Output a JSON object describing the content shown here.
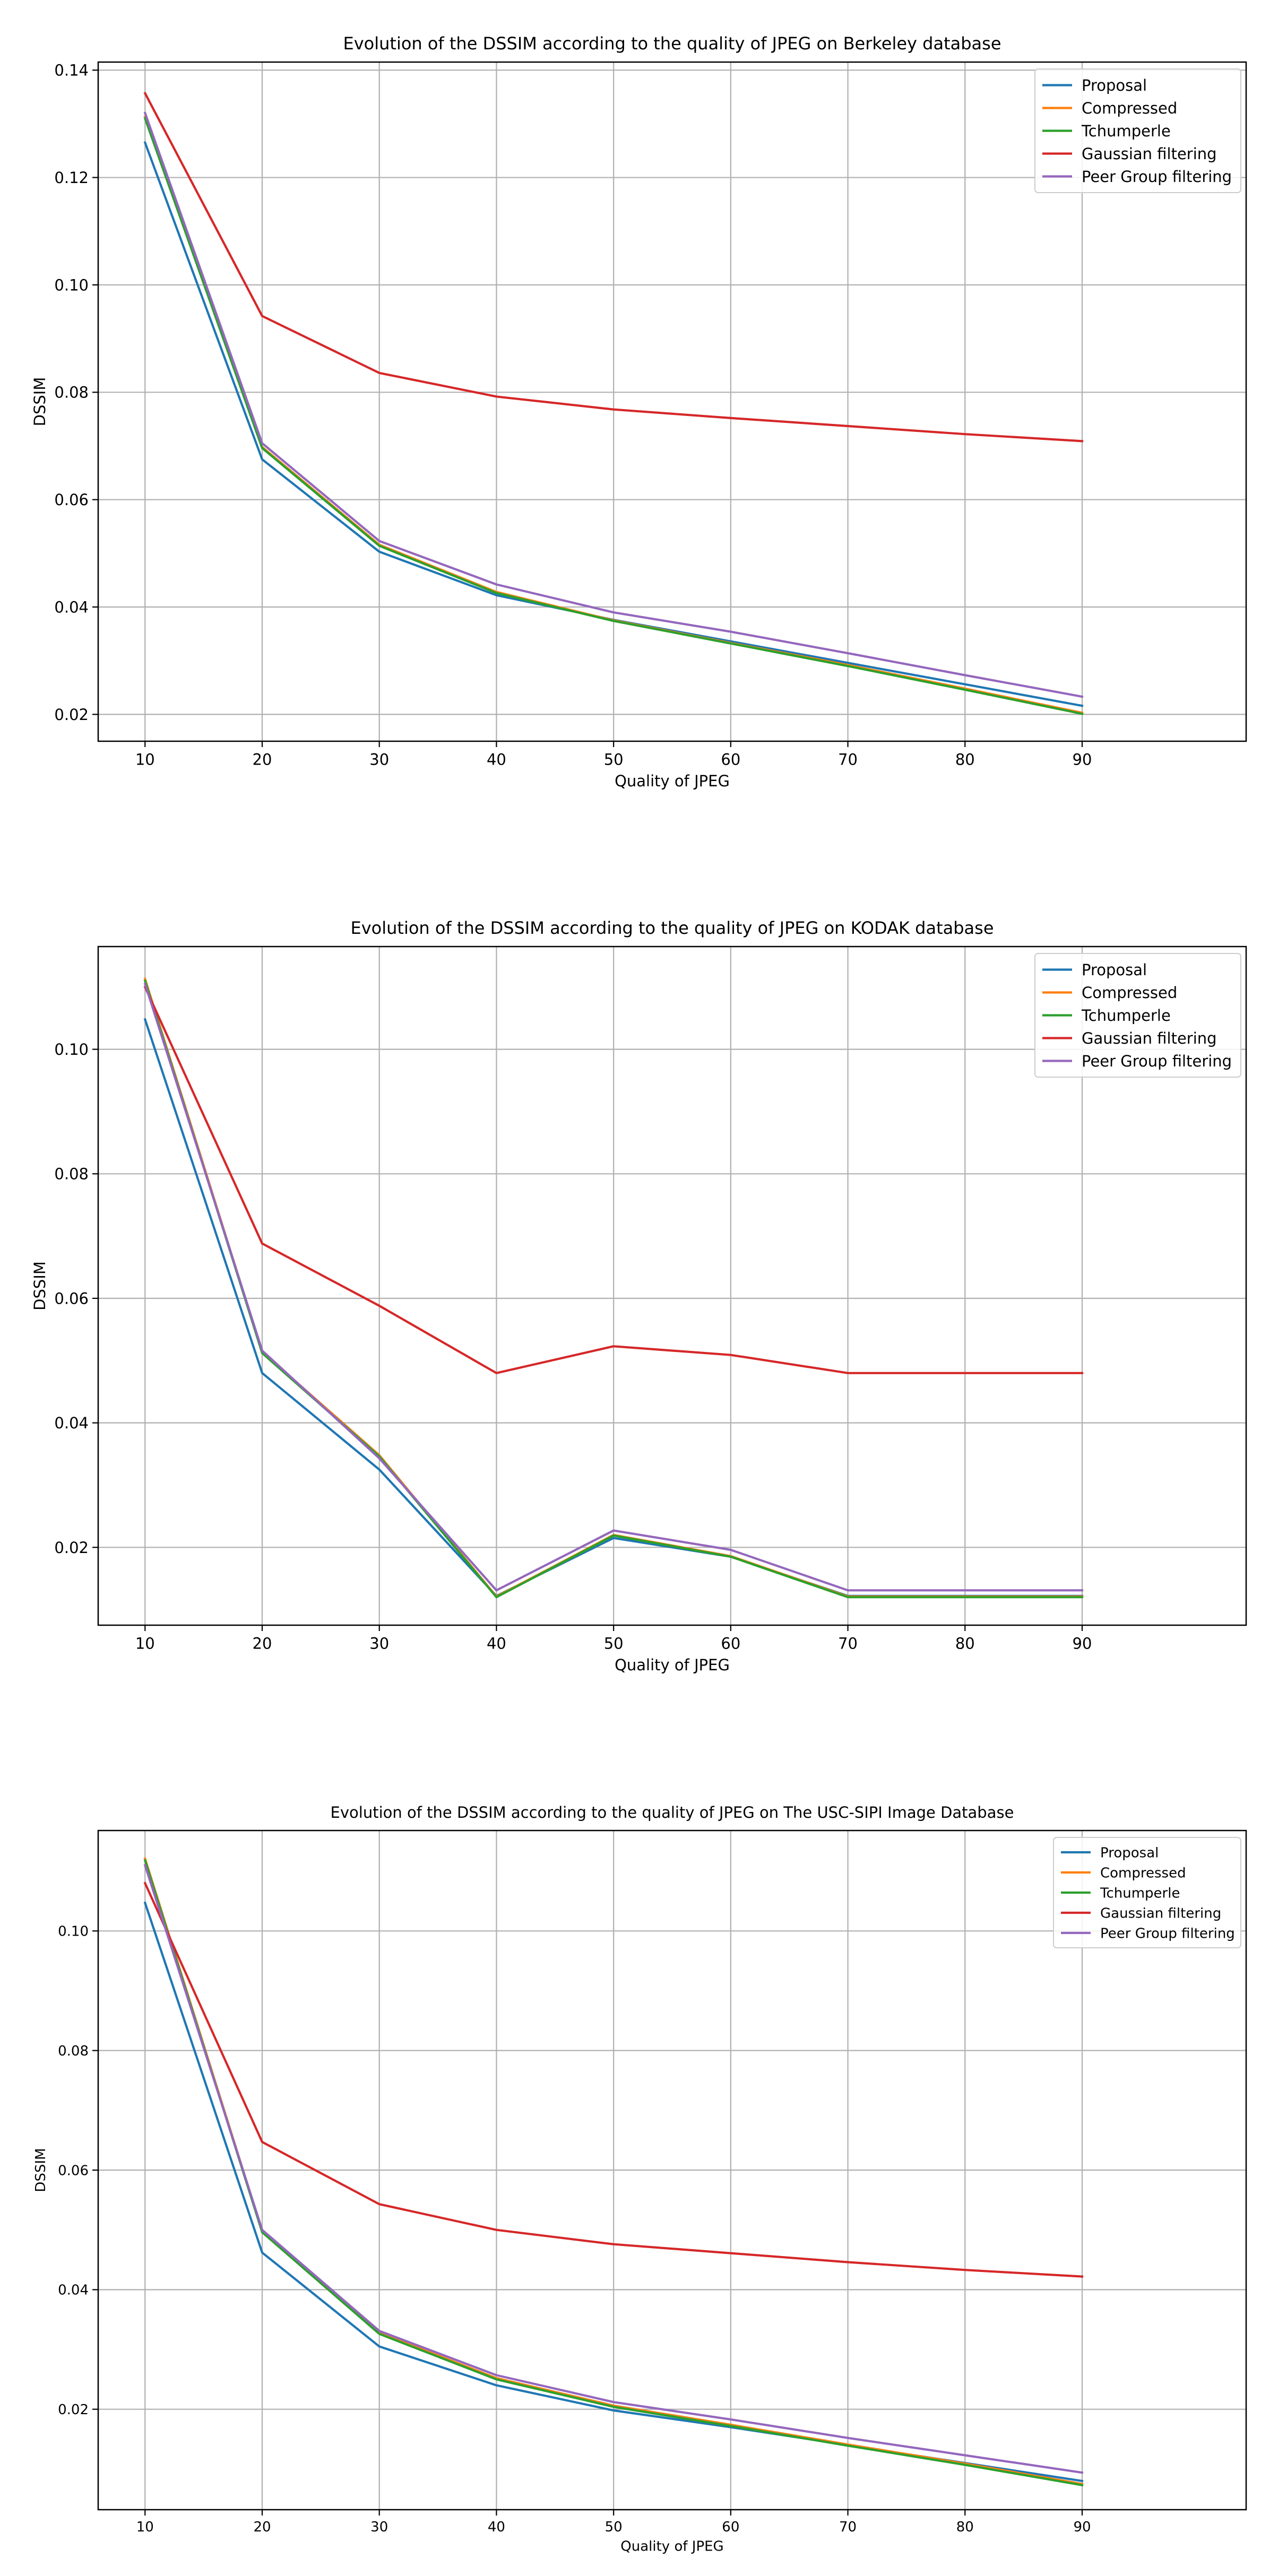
{
  "chart_data": [
    {
      "type": "line",
      "title": "Evolution of the DSSIM according to the quality of JPEG on Berkeley database",
      "xlabel": "Quality of JPEG",
      "ylabel": "DSSIM",
      "xlim": [
        6,
        104
      ],
      "ylim": [
        0.015,
        0.1415
      ],
      "grid": true,
      "legend_position": "top-right",
      "x": [
        10,
        20,
        30,
        40,
        50,
        60,
        70,
        80,
        90
      ],
      "xticks": [
        10,
        20,
        30,
        40,
        50,
        60,
        70,
        80,
        90
      ],
      "yticks": [
        0.02,
        0.04,
        0.06,
        0.08,
        0.1,
        0.12,
        0.14
      ],
      "ytick_labels": [
        "0.02",
        "0.04",
        "0.06",
        "0.08",
        "0.10",
        "0.12",
        "0.14"
      ],
      "series": [
        {
          "name": "Proposal",
          "color": "#1f77b4",
          "values": [
            0.1265,
            0.0675,
            0.0503,
            0.0422,
            0.0376,
            0.0336,
            0.0296,
            0.0256,
            0.0216
          ]
        },
        {
          "name": "Compressed",
          "color": "#ff7f0e",
          "values": [
            0.1313,
            0.0698,
            0.0516,
            0.0428,
            0.0375,
            0.0333,
            0.0292,
            0.0248,
            0.0203
          ]
        },
        {
          "name": "Tchumperle",
          "color": "#2ca02c",
          "values": [
            0.131,
            0.0696,
            0.0514,
            0.0426,
            0.0374,
            0.0332,
            0.029,
            0.0246,
            0.0201
          ]
        },
        {
          "name": "Gaussian filtering",
          "color": "#d62728",
          "values": [
            0.1357,
            0.0942,
            0.0836,
            0.0792,
            0.0768,
            0.0752,
            0.0737,
            0.0722,
            0.0709
          ]
        },
        {
          "name": "Peer Group filtering",
          "color": "#9467bd",
          "values": [
            0.132,
            0.0705,
            0.0523,
            0.0442,
            0.039,
            0.0354,
            0.0314,
            0.0273,
            0.0233
          ]
        }
      ]
    },
    {
      "type": "line",
      "title": "Evolution of the DSSIM according to the quality of JPEG on KODAK database",
      "xlabel": "Quality of JPEG",
      "ylabel": "DSSIM",
      "xlim": [
        6,
        104
      ],
      "ylim": [
        0.0075,
        0.1165
      ],
      "grid": true,
      "legend_position": "top-right",
      "x": [
        10,
        20,
        30,
        40,
        50,
        60,
        70,
        80,
        90
      ],
      "xticks": [
        10,
        20,
        30,
        40,
        50,
        60,
        70,
        80,
        90
      ],
      "yticks": [
        0.02,
        0.04,
        0.06,
        0.08,
        0.1
      ],
      "ytick_labels": [
        "0.02",
        "0.04",
        "0.06",
        "0.08",
        "0.10"
      ],
      "series": [
        {
          "name": "Proposal",
          "color": "#1f77b4",
          "values": [
            0.1048,
            0.048,
            0.0325,
            0.0122,
            0.0215,
            0.0185,
            0.0122,
            0.0122,
            0.0122
          ]
        },
        {
          "name": "Compressed",
          "color": "#ff7f0e",
          "values": [
            0.1113,
            0.0514,
            0.0348,
            0.0121,
            0.022,
            0.0186,
            0.0121,
            0.0121,
            0.0121
          ]
        },
        {
          "name": "Tchumperle",
          "color": "#2ca02c",
          "values": [
            0.111,
            0.0512,
            0.0346,
            0.012,
            0.0219,
            0.0185,
            0.012,
            0.012,
            0.012
          ]
        },
        {
          "name": "Gaussian filtering",
          "color": "#d62728",
          "values": [
            0.11,
            0.0688,
            0.0588,
            0.048,
            0.0523,
            0.0509,
            0.048,
            0.048,
            0.048
          ]
        },
        {
          "name": "Peer Group filtering",
          "color": "#9467bd",
          "values": [
            0.1105,
            0.0516,
            0.0343,
            0.0131,
            0.0227,
            0.0196,
            0.0131,
            0.0131,
            0.0131
          ]
        }
      ]
    },
    {
      "type": "line",
      "title": "Evolution of the DSSIM according to the quality of JPEG on The USC-SIPI Image Database",
      "xlabel": "Quality of JPEG",
      "ylabel": "DSSIM",
      "xlim": [
        6,
        104
      ],
      "ylim": [
        0.0032,
        0.1168
      ],
      "grid": true,
      "legend_position": "top-right",
      "x": [
        10,
        20,
        30,
        40,
        50,
        60,
        70,
        80,
        90
      ],
      "xticks": [
        10,
        20,
        30,
        40,
        50,
        60,
        70,
        80,
        90
      ],
      "yticks": [
        0.02,
        0.04,
        0.06,
        0.08,
        0.1
      ],
      "ytick_labels": [
        "0.02",
        "0.04",
        "0.06",
        "0.08",
        "0.10"
      ],
      "series": [
        {
          "name": "Proposal",
          "color": "#1f77b4",
          "values": [
            0.1047,
            0.0462,
            0.0305,
            0.024,
            0.0198,
            0.017,
            0.014,
            0.011,
            0.008
          ]
        },
        {
          "name": "Compressed",
          "color": "#ff7f0e",
          "values": [
            0.1121,
            0.0498,
            0.0328,
            0.0252,
            0.0206,
            0.0174,
            0.0141,
            0.0109,
            0.0075
          ]
        },
        {
          "name": "Tchumperle",
          "color": "#2ca02c",
          "values": [
            0.1118,
            0.0496,
            0.0326,
            0.025,
            0.0204,
            0.0172,
            0.0139,
            0.0107,
            0.0073
          ]
        },
        {
          "name": "Gaussian filtering",
          "color": "#d62728",
          "values": [
            0.108,
            0.0647,
            0.0543,
            0.05,
            0.0476,
            0.0461,
            0.0446,
            0.0433,
            0.0422
          ]
        },
        {
          "name": "Peer Group filtering",
          "color": "#9467bd",
          "values": [
            0.111,
            0.05,
            0.0331,
            0.0257,
            0.0212,
            0.0183,
            0.0152,
            0.0123,
            0.0094
          ]
        }
      ]
    }
  ]
}
